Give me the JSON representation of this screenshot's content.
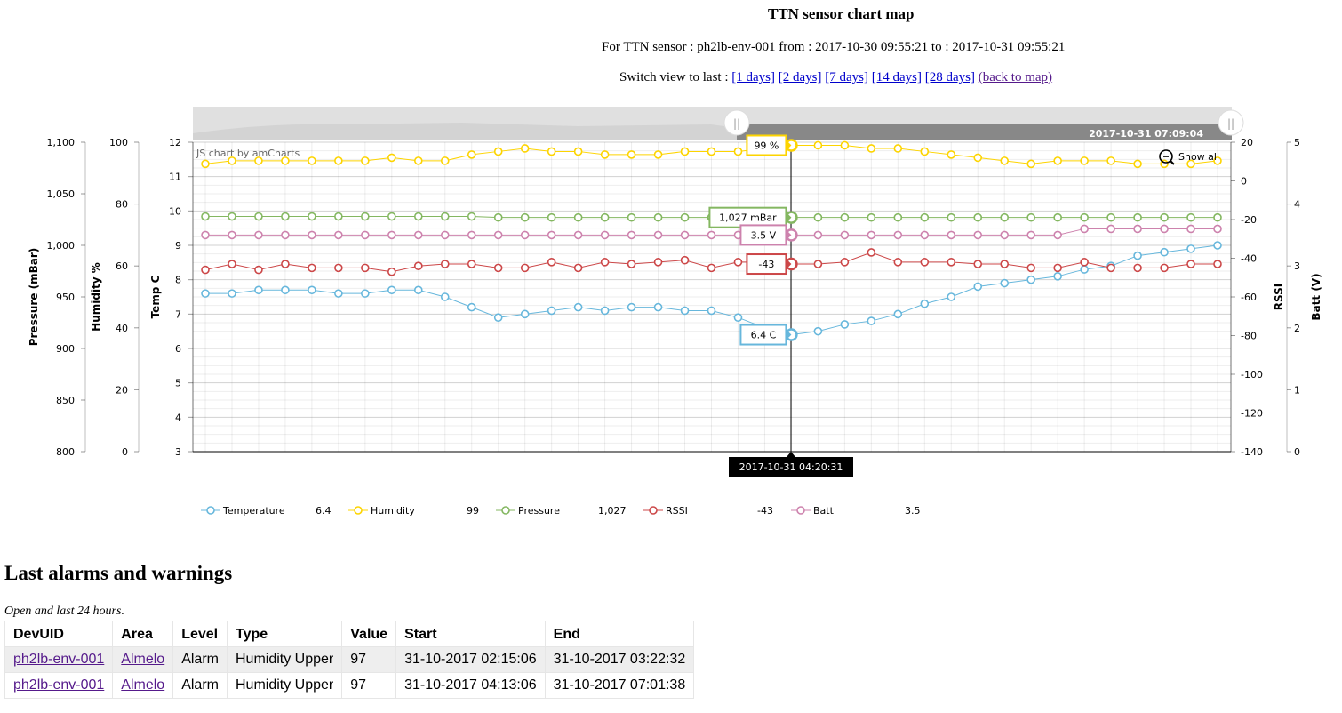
{
  "page": {
    "title": "TTN sensor chart map",
    "subtitle": "For TTN sensor : ph2lb-env-001 from : 2017-10-30 09:55:21 to : 2017-10-31 09:55:21",
    "switch_label": "Switch view to last :",
    "links": [
      "[1 days]",
      "[2 days]",
      "[7 days]",
      "[14 days]",
      "[28 days]"
    ],
    "back_link": "(back to map)"
  },
  "chart_data": {
    "type": "line",
    "watermark": "JS chart by amCharts",
    "zoom_button": "Show all",
    "cursor_time": "2017-10-31 04:20:31",
    "scrollbar_end_label": "2017-10-31 07:09:04",
    "axes": {
      "pressure": {
        "title": "Pressure (mBar)",
        "ticks": [
          "1,100",
          "1,050",
          "1,000",
          "950",
          "900",
          "850",
          "800"
        ],
        "min": 800,
        "max": 1100
      },
      "humidity": {
        "title": "Humidity %",
        "ticks": [
          "100",
          "80",
          "60",
          "40",
          "20",
          "0"
        ],
        "min": 0,
        "max": 100
      },
      "temp": {
        "title": "Temp C",
        "ticks": [
          "12",
          "11",
          "10",
          "9",
          "8",
          "7",
          "6",
          "5",
          "4",
          "3"
        ],
        "min": 3,
        "max": 12
      },
      "rssi": {
        "title": "RSSI",
        "ticks": [
          "20",
          "0",
          "-20",
          "-40",
          "-60",
          "-80",
          "-100",
          "-120",
          "-140"
        ],
        "min": -140,
        "max": 20
      },
      "batt": {
        "title": "Batt (V)",
        "ticks": [
          "5",
          "4",
          "3",
          "2",
          "1",
          "0"
        ],
        "min": 0,
        "max": 5
      }
    },
    "series": [
      {
        "name": "Temperature",
        "color": "#67b7dc",
        "axis": "temp",
        "legend_value": "6.4",
        "balloon": "6.4 C",
        "values": [
          7.6,
          7.6,
          7.7,
          7.7,
          7.7,
          7.6,
          7.6,
          7.7,
          7.7,
          7.5,
          7.2,
          6.9,
          7.0,
          7.1,
          7.2,
          7.1,
          7.2,
          7.2,
          7.1,
          7.1,
          6.9,
          6.6,
          6.4,
          6.5,
          6.7,
          6.8,
          7.0,
          7.3,
          7.5,
          7.8,
          7.9,
          8.0,
          8.1,
          8.3,
          8.4,
          8.7,
          8.8,
          8.9,
          9.0
        ]
      },
      {
        "name": "Humidity",
        "color": "#fdd400",
        "axis": "humidity",
        "legend_value": "99",
        "balloon": "99 %",
        "values": [
          93,
          94,
          94,
          94,
          94,
          94,
          94,
          95,
          94,
          94,
          96,
          97,
          98,
          97,
          97,
          96,
          96,
          96,
          97,
          97,
          97,
          98,
          99,
          99,
          99,
          98,
          98,
          97,
          96,
          95,
          94,
          93,
          94,
          94,
          94,
          93,
          93,
          93,
          94
        ]
      },
      {
        "name": "Pressure",
        "color": "#84b761",
        "axis": "pressure",
        "legend_value": "1,027",
        "balloon": "1,027 mBar",
        "values": [
          1028,
          1028,
          1028,
          1028,
          1028,
          1028,
          1028,
          1028,
          1028,
          1028,
          1028,
          1027,
          1027,
          1027,
          1027,
          1027,
          1027,
          1027,
          1027,
          1027,
          1027,
          1027,
          1027,
          1027,
          1027,
          1027,
          1027,
          1027,
          1027,
          1027,
          1027,
          1027,
          1027,
          1027,
          1027,
          1027,
          1027,
          1027,
          1027
        ]
      },
      {
        "name": "RSSI",
        "color": "#cc4748",
        "axis": "rssi",
        "legend_value": "-43",
        "balloon": "-43",
        "values": [
          -46,
          -43,
          -46,
          -43,
          -45,
          -45,
          -45,
          -47,
          -44,
          -43,
          -43,
          -45,
          -45,
          -42,
          -45,
          -42,
          -43,
          -42,
          -41,
          -45,
          -42,
          -42,
          -43,
          -43,
          -42,
          -37,
          -42,
          -42,
          -42,
          -43,
          -43,
          -45,
          -45,
          -42,
          -45,
          -45,
          -45,
          -43,
          -43
        ]
      },
      {
        "name": "Batt",
        "color": "#cd82ad",
        "axis": "batt",
        "legend_value": "3.5",
        "balloon": "3.5 V",
        "values": [
          3.5,
          3.5,
          3.5,
          3.5,
          3.5,
          3.5,
          3.5,
          3.5,
          3.5,
          3.5,
          3.5,
          3.5,
          3.5,
          3.5,
          3.5,
          3.5,
          3.5,
          3.5,
          3.5,
          3.5,
          3.5,
          3.5,
          3.5,
          3.5,
          3.5,
          3.5,
          3.5,
          3.5,
          3.5,
          3.5,
          3.5,
          3.5,
          3.5,
          3.6,
          3.6,
          3.6,
          3.6,
          3.6,
          3.6
        ]
      }
    ],
    "cursor_index": 22,
    "point_count": 39
  },
  "alarms": {
    "title": "Last alarms and warnings",
    "note": "Open and last 24 hours.",
    "columns": [
      "DevUID",
      "Area",
      "Level",
      "Type",
      "Value",
      "Start",
      "End"
    ],
    "rows": [
      {
        "devuid": "ph2lb-env-001",
        "area": "Almelo",
        "level": "Alarm",
        "type": "Humidity Upper",
        "value": "97",
        "start": "31-10-2017 02:15:06",
        "end": "31-10-2017 03:22:32"
      },
      {
        "devuid": "ph2lb-env-001",
        "area": "Almelo",
        "level": "Alarm",
        "type": "Humidity Upper",
        "value": "97",
        "start": "31-10-2017 04:13:06",
        "end": "31-10-2017 07:01:38"
      }
    ]
  }
}
